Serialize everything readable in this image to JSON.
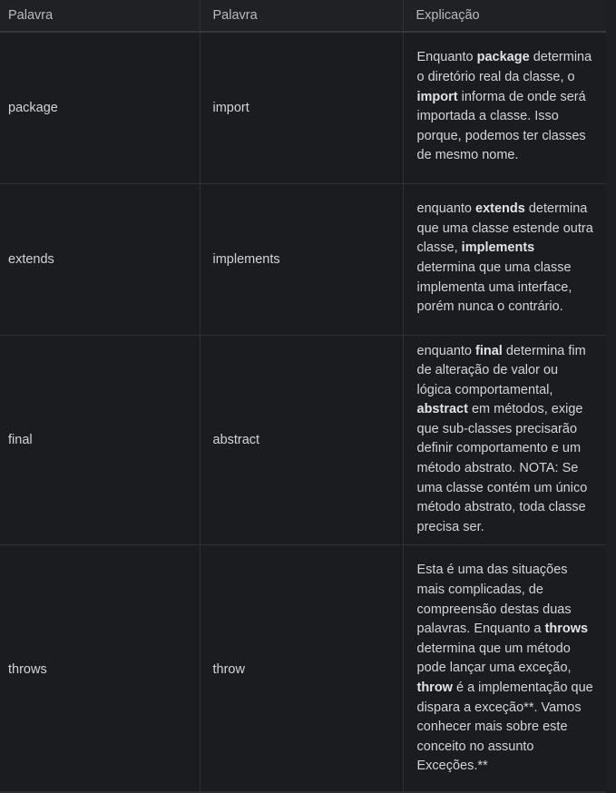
{
  "table": {
    "headers": [
      "Palavra",
      "Palavra",
      "Explicação"
    ],
    "rows": [
      {
        "word1": "package",
        "word2": "import",
        "explanation": [
          {
            "t": "Enquanto ",
            "b": false
          },
          {
            "t": "package",
            "b": true
          },
          {
            "t": " determina o diretório real da classe, o ",
            "b": false
          },
          {
            "t": "import",
            "b": true
          },
          {
            "t": " informa de onde será importada a classe. Isso porque, podemos ter classes de mesmo nome.",
            "b": false
          }
        ]
      },
      {
        "word1": "extends",
        "word2": "implements",
        "explanation": [
          {
            "t": "enquanto ",
            "b": false
          },
          {
            "t": "extends",
            "b": true
          },
          {
            "t": " determina que uma classe estende outra classe, ",
            "b": false
          },
          {
            "t": "implements",
            "b": true
          },
          {
            "t": " determina que uma classe implementa uma interface, porém nunca o contrário.",
            "b": false
          }
        ]
      },
      {
        "word1": "final",
        "word2": "abstract",
        "explanation": [
          {
            "t": "enquanto ",
            "b": false
          },
          {
            "t": "final",
            "b": true
          },
          {
            "t": " determina fim de alteração de valor ou lógica comportamental, ",
            "b": false
          },
          {
            "t": "abstract",
            "b": true
          },
          {
            "t": " em métodos, exige que sub-classes precisarão definir comportamento e um método abstrato. NOTA: Se uma classe contém um único método abstrato, toda classe precisa ser.",
            "b": false
          }
        ]
      },
      {
        "word1": "throws",
        "word2": "throw",
        "explanation": [
          {
            "t": "Esta é uma das situações mais complicadas, de compreensão destas duas palavras. Enquanto a ",
            "b": false
          },
          {
            "t": "throws",
            "b": true
          },
          {
            "t": " determina que um método pode lançar uma exceção, ",
            "b": false
          },
          {
            "t": "throw",
            "b": true
          },
          {
            "t": " é a implementação que dispara a exceção**. Vamos conhecer mais sobre este conceito no assunto Exceções.**",
            "b": false
          }
        ]
      }
    ]
  }
}
